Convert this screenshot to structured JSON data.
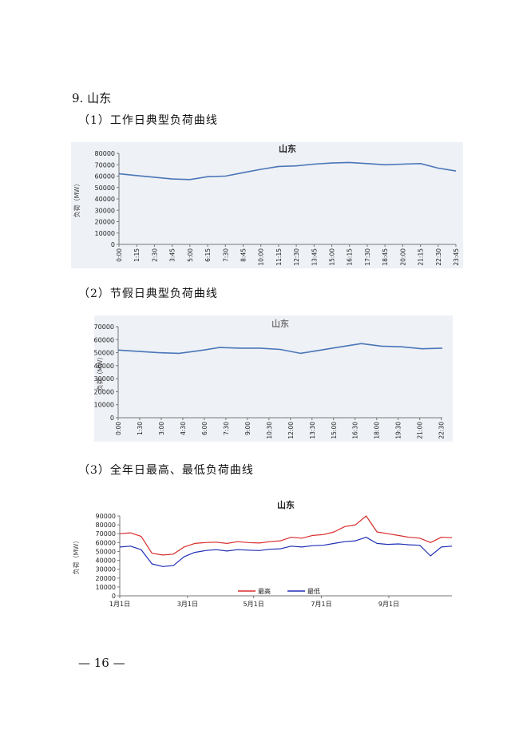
{
  "section": {
    "title": "9. 山东"
  },
  "subtitles": [
    "（1）工作日典型负荷曲线",
    "（2）节假日典型负荷曲线",
    "（3）全年日最高、最低负荷曲线"
  ],
  "page_number": "— 16 —",
  "colors": {
    "line_blue": "#4a76b8",
    "line_red": "#d92b2b",
    "line_navy": "#1f2fb5",
    "panel_bg": "#eef1f6",
    "axis": "#666666"
  },
  "chart_data": [
    {
      "type": "line",
      "title": "山东",
      "ylabel": "负荷（MW）",
      "xlabel": "",
      "ylim": [
        0,
        80000
      ],
      "yticks": [
        "0",
        "10000",
        "20000",
        "30000",
        "40000",
        "50000",
        "60000",
        "70000",
        "80000"
      ],
      "x_tick_labels": [
        "0:00",
        "1:15",
        "2:30",
        "3:45",
        "5:00",
        "6:15",
        "7:30",
        "8:45",
        "10:00",
        "11:15",
        "12:30",
        "13:45",
        "15:00",
        "16:15",
        "17:30",
        "18:45",
        "20:00",
        "21:15",
        "22:30",
        "23:45"
      ],
      "series": [
        {
          "values": [
            62000,
            60500,
            59000,
            57500,
            57000,
            59500,
            60000,
            63000,
            66000,
            68500,
            69000,
            70500,
            71500,
            72000,
            71000,
            70000,
            70500,
            71000,
            67000,
            64500
          ]
        }
      ],
      "grid": false,
      "legend": "none"
    },
    {
      "type": "line",
      "title": "山东",
      "ylabel": "负荷（MW）",
      "xlabel": "",
      "ylim": [
        0,
        70000
      ],
      "yticks": [
        "0",
        "10000",
        "20000",
        "30000",
        "40000",
        "50000",
        "60000",
        "70000"
      ],
      "x_tick_labels": [
        "0:00",
        "1:30",
        "3:00",
        "4:30",
        "6:00",
        "7:30",
        "9:00",
        "10:30",
        "12:00",
        "13:30",
        "15:00",
        "16:30",
        "18:00",
        "19:30",
        "21:00",
        "22:30"
      ],
      "series": [
        {
          "values": [
            52000,
            51000,
            50000,
            49500,
            51500,
            54000,
            53500,
            53500,
            52500,
            49500,
            52000,
            54500,
            57000,
            55000,
            54500,
            53000,
            53500
          ]
        }
      ],
      "grid": false,
      "legend": "none"
    },
    {
      "type": "line",
      "title": "山东",
      "ylabel": "负荷（MW）",
      "xlabel": "",
      "ylim": [
        0,
        90000
      ],
      "yticks": [
        "0",
        "10000",
        "20000",
        "30000",
        "40000",
        "50000",
        "60000",
        "70000",
        "80000",
        "90000"
      ],
      "x_tick_labels": [
        "1月1日",
        "3月1日",
        "5月1日",
        "7月1日",
        "9月1日"
      ],
      "series": [
        {
          "name": "最高",
          "color": "#d92b2b",
          "values": [
            70000,
            71000,
            67000,
            48000,
            46000,
            47000,
            55000,
            59000,
            60000,
            60500,
            59000,
            61000,
            60000,
            59500,
            61000,
            62000,
            66000,
            65000,
            68000,
            69000,
            72000,
            78000,
            80000,
            90000,
            72000,
            70000,
            68000,
            66000,
            65000,
            60000,
            66000,
            65500
          ]
        },
        {
          "name": "最低",
          "color": "#1f2fb5",
          "values": [
            55000,
            56000,
            52000,
            36000,
            33000,
            34000,
            44000,
            49000,
            51000,
            52000,
            50500,
            52000,
            51500,
            51000,
            52500,
            53000,
            56000,
            55000,
            56500,
            57000,
            59000,
            61000,
            62000,
            66000,
            59000,
            58000,
            58500,
            57500,
            57000,
            45000,
            55000,
            56000
          ]
        }
      ],
      "grid": false,
      "legend": "bottom-center"
    }
  ]
}
